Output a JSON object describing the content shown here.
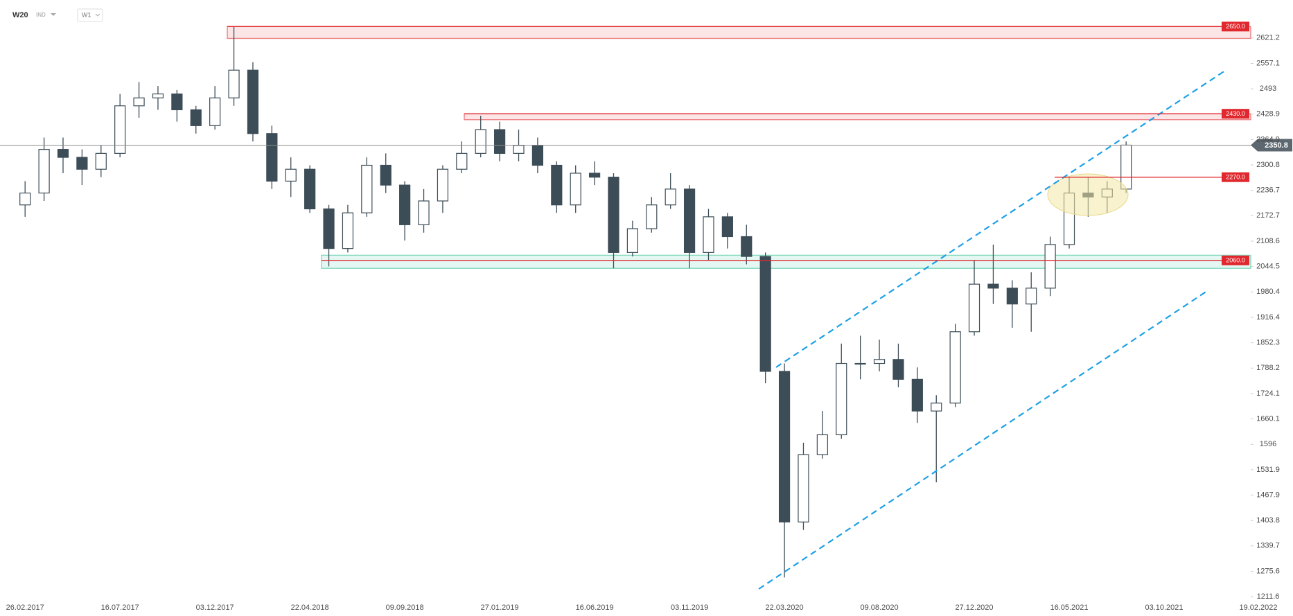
{
  "header": {
    "symbol": "W20",
    "market": "IND",
    "interval": "W1"
  },
  "chart_data": {
    "type": "candlestick",
    "x": [
      "26.02.2017",
      "26.03.2017",
      "23.04.2017",
      "21.05.2017",
      "18.06.2017",
      "16.07.2017",
      "13.08.2017",
      "10.09.2017",
      "08.10.2017",
      "05.11.2017",
      "03.12.2017",
      "31.12.2017",
      "28.01.2018",
      "25.02.2018",
      "25.03.2018",
      "22.04.2018",
      "20.05.2018",
      "17.06.2018",
      "15.07.2018",
      "12.08.2018",
      "09.09.2018",
      "07.10.2018",
      "04.11.2018",
      "02.12.2018",
      "30.12.2018",
      "27.01.2019",
      "24.02.2019",
      "24.03.2019",
      "21.04.2019",
      "19.05.2019",
      "16.06.2019",
      "14.07.2019",
      "11.08.2019",
      "08.09.2019",
      "06.10.2019",
      "03.11.2019",
      "01.12.2019",
      "29.12.2019",
      "26.01.2020",
      "23.02.2020",
      "22.03.2020",
      "19.04.2020",
      "17.05.2020",
      "14.06.2020",
      "12.07.2020",
      "09.08.2020",
      "06.09.2020",
      "04.10.2020",
      "01.11.2020",
      "29.11.2020",
      "27.12.2020",
      "24.01.2021",
      "21.02.2021",
      "21.03.2021",
      "18.04.2021",
      "16.05.2021",
      "13.06.2021",
      "11.07.2021",
      "08.08.2021"
    ],
    "open": [
      2200,
      2230,
      2340,
      2320,
      2290,
      2330,
      2450,
      2470,
      2480,
      2440,
      2400,
      2470,
      2540,
      2380,
      2260,
      2290,
      2190,
      2090,
      2180,
      2300,
      2250,
      2150,
      2210,
      2290,
      2330,
      2390,
      2330,
      2350,
      2300,
      2200,
      2280,
      2270,
      2080,
      2140,
      2200,
      2240,
      2080,
      2170,
      2120,
      2070,
      1780,
      1400,
      1570,
      1620,
      1800,
      1800,
      1810,
      1760,
      1680,
      1700,
      1880,
      2000,
      1990,
      1950,
      1990,
      2100,
      2230,
      2220,
      2240
    ],
    "high": [
      2260,
      2370,
      2370,
      2340,
      2350,
      2480,
      2510,
      2500,
      2490,
      2450,
      2500,
      2650,
      2560,
      2400,
      2320,
      2300,
      2200,
      2200,
      2320,
      2330,
      2260,
      2240,
      2300,
      2360,
      2425,
      2410,
      2390,
      2370,
      2310,
      2300,
      2310,
      2280,
      2160,
      2220,
      2280,
      2250,
      2190,
      2180,
      2150,
      2080,
      1800,
      1600,
      1680,
      1850,
      1870,
      1860,
      1850,
      1790,
      1720,
      1900,
      2060,
      2100,
      2010,
      2030,
      2120,
      2270,
      2270,
      2260,
      2360
    ],
    "low": [
      2170,
      2210,
      2280,
      2250,
      2270,
      2320,
      2420,
      2440,
      2410,
      2380,
      2390,
      2450,
      2360,
      2240,
      2220,
      2180,
      2045,
      2080,
      2170,
      2230,
      2110,
      2130,
      2180,
      2280,
      2320,
      2310,
      2310,
      2280,
      2180,
      2180,
      2250,
      2040,
      2070,
      2130,
      2190,
      2040,
      2060,
      2090,
      2050,
      1750,
      1260,
      1380,
      1560,
      1610,
      1760,
      1780,
      1740,
      1650,
      1500,
      1690,
      1870,
      1950,
      1890,
      1880,
      1970,
      2090,
      2170,
      2180,
      2230
    ],
    "close": [
      2230,
      2340,
      2320,
      2290,
      2330,
      2450,
      2470,
      2480,
      2440,
      2400,
      2470,
      2540,
      2380,
      2260,
      2290,
      2190,
      2090,
      2180,
      2300,
      2250,
      2150,
      2210,
      2290,
      2330,
      2390,
      2330,
      2350,
      2300,
      2200,
      2280,
      2270,
      2080,
      2140,
      2200,
      2240,
      2080,
      2170,
      2120,
      2070,
      1780,
      1400,
      1570,
      1620,
      1800,
      1800,
      1810,
      1760,
      1680,
      1700,
      1880,
      2000,
      1990,
      1950,
      1990,
      2100,
      2230,
      2220,
      2240,
      2350.8
    ],
    "up_color": "#ffffff",
    "down_color": "#3d4d57",
    "xlim": [
      "20.01.2017",
      "19.02.2022"
    ],
    "xticks": [
      "26.02.2017",
      "16.07.2017",
      "03.12.2017",
      "22.04.2018",
      "09.09.2018",
      "27.01.2019",
      "16.06.2019",
      "03.11.2019",
      "22.03.2020",
      "09.08.2020",
      "27.12.2020",
      "16.05.2021",
      "03.10.2021",
      "19.02.2022"
    ],
    "ylim": [
      1196,
      2717
    ],
    "yticks": [
      1211.6,
      1275.6,
      1339.7,
      1403.8,
      1467.9,
      1531.9,
      1596.0,
      1660.1,
      1724.1,
      1788.2,
      1852.3,
      1916.4,
      1980.4,
      2044.5,
      2108.6,
      2172.7,
      2236.7,
      2300.8,
      2364.9,
      2428.9,
      2493.0,
      2557.1,
      2621.2
    ],
    "levels": [
      {
        "value": 2650,
        "label": "2650.0",
        "color": "#e0282e"
      },
      {
        "value": 2430,
        "label": "2430.0",
        "color": "#e0282e"
      },
      {
        "value": 2270,
        "label": "2270.0",
        "color": "#e0282e"
      },
      {
        "value": 2060,
        "label": "2060.0",
        "color": "#e0282e"
      }
    ],
    "zones": [
      {
        "from": 2620,
        "to": 2650,
        "color": "#e0282e"
      },
      {
        "from": 2415,
        "to": 2430,
        "color": "#e0282e"
      },
      {
        "from": 2040,
        "to": 2073,
        "color": "#2bbf95"
      }
    ],
    "last_price": {
      "value": 2350.8,
      "label": "2350.8"
    }
  }
}
